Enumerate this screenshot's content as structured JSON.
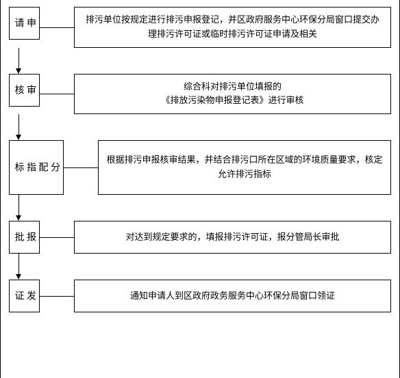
{
  "flowchart": {
    "type": "flowchart",
    "background_color": "#ffffff",
    "border_color": "#000000",
    "text_color": "#000000",
    "font_family": "SimSun",
    "label_fontsize": 14,
    "desc_fontsize": 13,
    "connector_h_width": 50,
    "arrow_height": 38,
    "label_box_width": 28,
    "steps": [
      {
        "id": "apply",
        "label": "申请",
        "label_height": 48,
        "description": "排污单位按规定进行排污申报登记，并区政府服务中心环保分局窗口提交办理排污许可证或临时排污许可证申请及相关"
      },
      {
        "id": "review",
        "label": "审核",
        "label_height": 48,
        "description": "综合科对排污单位填报的\n《排放污染物申报登记表》进行审核"
      },
      {
        "id": "allocate",
        "label": "分配指标",
        "label_height": 80,
        "description": "根据排污申报核审结果，并结合排污口所在区域的环境质量要求，核定允许排污指标"
      },
      {
        "id": "approve",
        "label": "报批",
        "label_height": 48,
        "description": "对达到规定要求的，填报排污许可证，报分管局长审批"
      },
      {
        "id": "issue",
        "label": "发证",
        "label_height": 48,
        "description": "通知申请人到区政府政务服务中心环保分局窗口领证"
      }
    ],
    "edges": [
      {
        "from": "apply",
        "to": "review"
      },
      {
        "from": "review",
        "to": "allocate"
      },
      {
        "from": "allocate",
        "to": "approve"
      },
      {
        "from": "approve",
        "to": "issue"
      }
    ]
  }
}
